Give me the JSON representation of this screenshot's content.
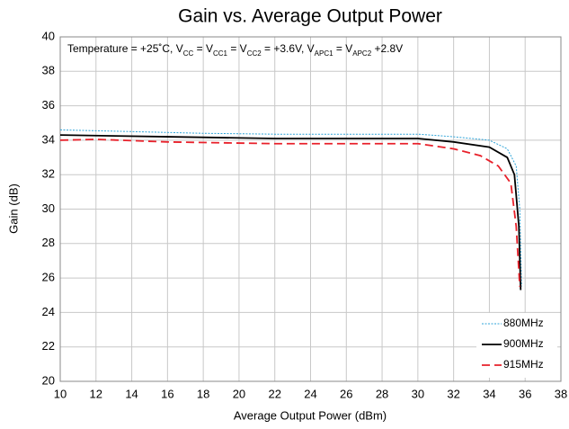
{
  "chart_data": {
    "type": "line",
    "title": "Gain vs. Average Output Power",
    "annotation": [
      "Temperature = +25˚C, V",
      "CC",
      " = V",
      "CC1",
      " = V",
      "CC2",
      " = +3.6V, V",
      "APC1",
      " = V",
      "APC2",
      " +2.8V"
    ],
    "xlabel": "Average Output Power (dBm)",
    "ylabel": "Gain (dB)",
    "xlim": [
      10,
      38
    ],
    "xticks": [
      10,
      12,
      14,
      16,
      18,
      20,
      22,
      24,
      26,
      28,
      30,
      32,
      34,
      36,
      38
    ],
    "ylim": [
      20,
      40
    ],
    "yticks": [
      20,
      22,
      24,
      26,
      28,
      30,
      32,
      34,
      36,
      38,
      40
    ],
    "grid": true,
    "legend": "lower right",
    "series": [
      {
        "name": "880MHz",
        "color": "#2fa4d8",
        "style": "dotted",
        "x": [
          10,
          14,
          18,
          22,
          26,
          30,
          32,
          34,
          35,
          35.5,
          35.7,
          35.8
        ],
        "values": [
          34.6,
          34.5,
          34.4,
          34.35,
          34.35,
          34.35,
          34.2,
          34.0,
          33.5,
          32.5,
          30,
          25.5
        ]
      },
      {
        "name": "900MHz",
        "color": "#000000",
        "style": "solid",
        "x": [
          10,
          16,
          22,
          30,
          32,
          34,
          35,
          35.4,
          35.65,
          35.75
        ],
        "values": [
          34.3,
          34.2,
          34.1,
          34.1,
          33.9,
          33.6,
          33.0,
          32,
          29,
          25.3
        ]
      },
      {
        "name": "915MHz",
        "color": "#e8202a",
        "style": "dashed",
        "x": [
          10,
          12,
          16,
          22,
          30,
          32,
          33.5,
          34.5,
          35.2,
          35.5,
          35.7
        ],
        "values": [
          34.0,
          34.05,
          33.9,
          33.8,
          33.8,
          33.5,
          33.1,
          32.5,
          31.5,
          29,
          25.5
        ]
      }
    ]
  }
}
